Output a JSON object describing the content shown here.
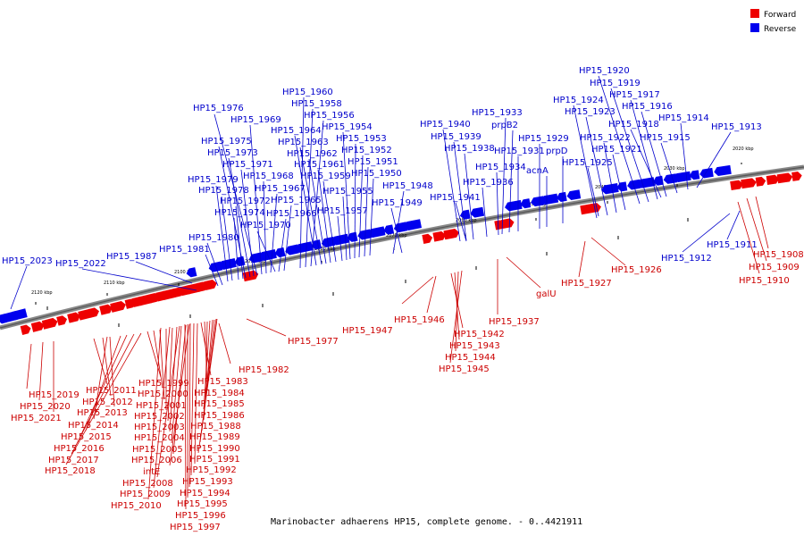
{
  "caption": "Marinobacter adhaerens HP15, complete genome. - 0..4421911",
  "legend": [
    {
      "label": "Forward",
      "color": "#ee0000"
    },
    {
      "label": "Reverse",
      "color": "#0000ee"
    }
  ],
  "colors": {
    "forward": "#ee0000",
    "forward_label": "#cc0000",
    "reverse": "#0000ee",
    "reverse_label": "#0000cc",
    "backbone": "#888888"
  },
  "ticks": [
    "2020 kbp",
    "2030 kbp",
    "2040 kbp",
    "2050 kbp",
    "2060 kbp",
    "2070 kbp",
    "2080 kbp",
    "2090 kbp",
    "2100 kbp",
    "2110 kbp",
    "2120 kbp"
  ],
  "forward_labels": [
    "HP15_2019",
    "HP15_2020",
    "HP15_2021",
    "HP15_2011",
    "HP15_2012",
    "HP15_2013",
    "HP15_2014",
    "HP15_2015",
    "HP15_2016",
    "HP15_2017",
    "HP15_2018",
    "HP15_1999",
    "HP15_2000",
    "HP15_2001",
    "HP15_2002",
    "HP15_2003",
    "HP15_2004",
    "HP15_2005",
    "HP15_2006",
    "intE",
    "HP15_2008",
    "HP15_2009",
    "HP15_2010",
    "HP15_1983",
    "HP15_1984",
    "HP15_1985",
    "HP15_1986",
    "HP15_1988",
    "HP15_1989",
    "HP15_1990",
    "HP15_1991",
    "HP15_1992",
    "HP15_1993",
    "HP15_1994",
    "HP15_1995",
    "HP15_1996",
    "HP15_1997",
    "HP15_1982",
    "HP15_1977",
    "HP15_1947",
    "HP15_1946",
    "HP15_1942",
    "HP15_1943",
    "HP15_1944",
    "HP15_1945",
    "HP15_1937",
    "galU",
    "HP15_1927",
    "HP15_1926",
    "HP15_1908",
    "HP15_1909",
    "HP15_1910"
  ],
  "reverse_labels": [
    "HP15_2023",
    "HP15_2022",
    "HP15_1987",
    "HP15_1981",
    "HP15_1980",
    "HP15_1979",
    "HP15_1978",
    "HP15_1974",
    "HP15_1972",
    "HP15_1975",
    "HP15_1973",
    "HP15_1971",
    "HP15_1976",
    "HP15_1969",
    "HP15_1968",
    "HP15_1967",
    "HP15_1966",
    "HP15_1965",
    "HP15_1970",
    "HP15_1960",
    "HP15_1958",
    "HP15_1956",
    "HP15_1964",
    "HP15_1963",
    "HP15_1962",
    "HP15_1961",
    "HP15_1959",
    "HP15_1957",
    "HP15_1955",
    "HP15_1954",
    "HP15_1953",
    "HP15_1952",
    "HP15_1951",
    "HP15_1950",
    "HP15_1948",
    "HP15_1949",
    "HP15_1940",
    "HP15_1939",
    "HP15_1938",
    "HP15_1941",
    "HP15_1936",
    "HP15_1934",
    "HP15_1933",
    "prpB2",
    "HP15_1931",
    "acnA",
    "HP15_1929",
    "prpD",
    "HP15_1924",
    "HP15_1923",
    "HP15_1922",
    "HP15_1921",
    "HP15_1925",
    "HP15_1920",
    "HP15_1919",
    "HP15_1917",
    "HP15_1916",
    "HP15_1918",
    "HP15_1915",
    "HP15_1914",
    "HP15_1913",
    "HP15_1912",
    "HP15_1911"
  ]
}
